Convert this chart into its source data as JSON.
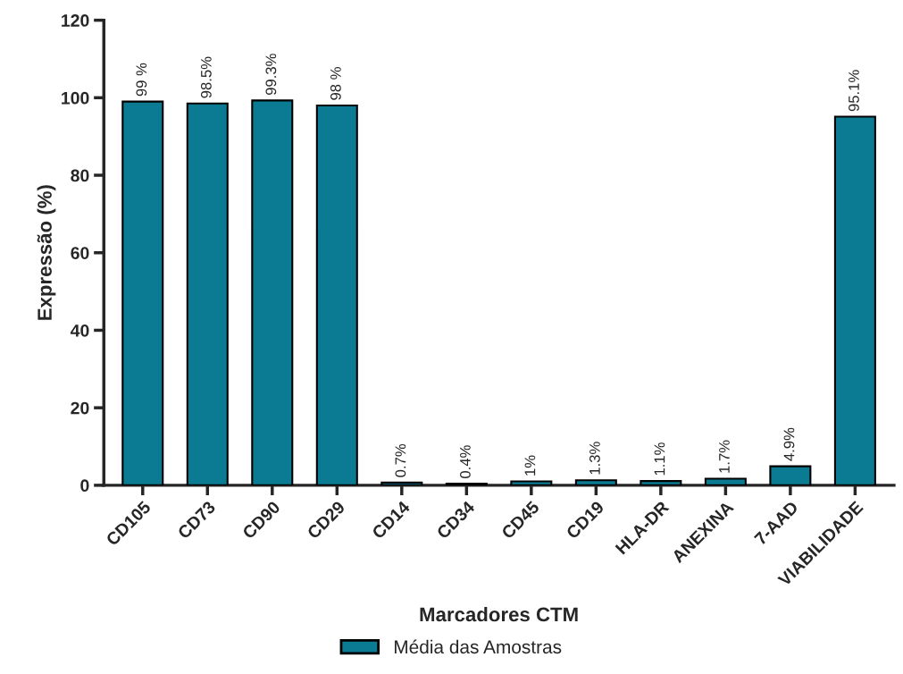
{
  "chart_data": {
    "type": "bar",
    "xlabel": "Marcadores CTM",
    "ylabel": "Expressão (%)",
    "categories": [
      "CD105",
      "CD73",
      "CD90",
      "CD29",
      "CD14",
      "CD34",
      "CD45",
      "CD19",
      "HLA-DR",
      "ANEXINA",
      "7-AAD",
      "VIABILIDADE"
    ],
    "series": [
      {
        "name": "Média das Amostras",
        "color": "#0b7b93",
        "values": [
          99,
          98.5,
          99.3,
          98,
          0.7,
          0.4,
          1,
          1.3,
          1.1,
          1.7,
          4.9,
          95.1
        ]
      }
    ],
    "value_labels": [
      "99 %",
      "98.5%",
      "99.3%",
      "98 %",
      "0.7%",
      "0.4%",
      "1%",
      "1.3%",
      "1.1%",
      "1.7%",
      "4.9%",
      "95.1%"
    ],
    "ylim": [
      0,
      120
    ],
    "yticks": [
      0,
      20,
      40,
      60,
      80,
      100,
      120
    ],
    "grid": false,
    "legend": "bottom"
  }
}
